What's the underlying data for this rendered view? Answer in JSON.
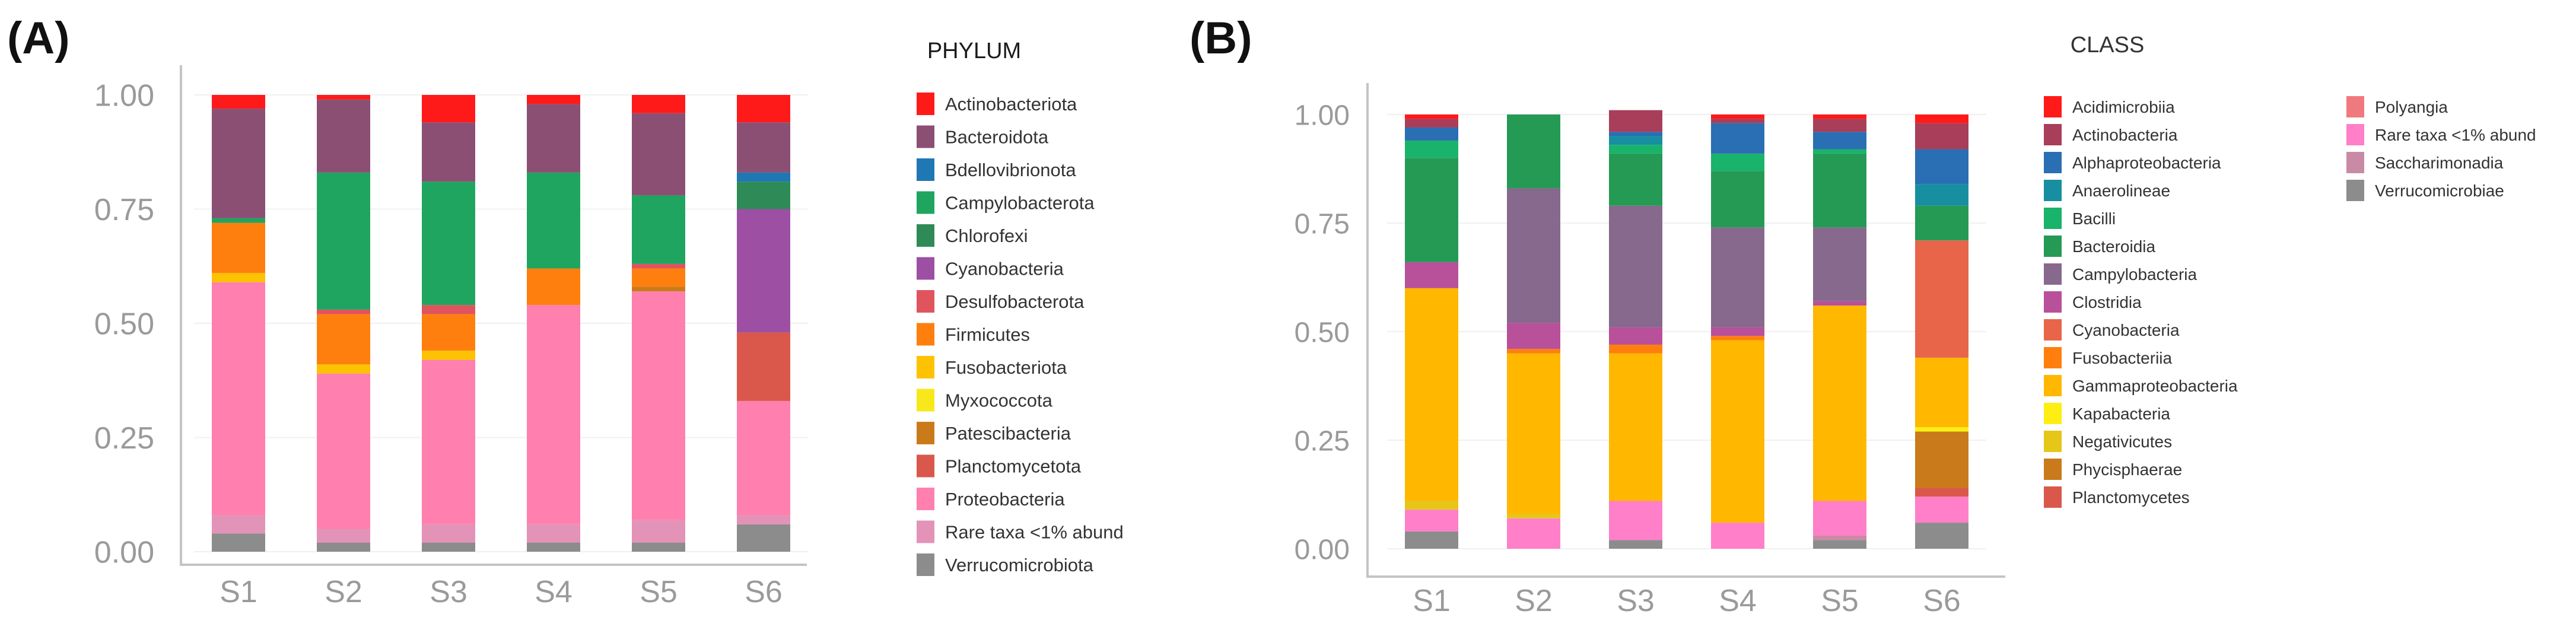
{
  "panels": [
    {
      "id": "A",
      "label": "(A)",
      "legend_title": "PHYLUM",
      "chart_data": {
        "type": "bar",
        "stacked": true,
        "categories": [
          "S1",
          "S2",
          "S3",
          "S4",
          "S5",
          "S6"
        ],
        "ylim": [
          0,
          1
        ],
        "yticks": [
          "0.00",
          "0.25",
          "0.50",
          "0.75",
          "1.00"
        ],
        "series": [
          {
            "name": "Verrucomicrobiota",
            "color": "#8c8c8c",
            "values": [
              0.04,
              0.02,
              0.02,
              0.02,
              0.02,
              0.06
            ]
          },
          {
            "name": "Rare taxa <1% abund",
            "color": "#e393b7",
            "values": [
              0.04,
              0.03,
              0.04,
              0.04,
              0.05,
              0.02
            ]
          },
          {
            "name": "Proteobacteria",
            "color": "#ff7fae",
            "values": [
              0.51,
              0.34,
              0.36,
              0.48,
              0.5,
              0.25
            ]
          },
          {
            "name": "Planctomycetota",
            "color": "#d9584b",
            "values": [
              0.0,
              0.0,
              0.0,
              0.0,
              0.0,
              0.15
            ]
          },
          {
            "name": "Patescibacteria",
            "color": "#c97b1b",
            "values": [
              0.0,
              0.0,
              0.0,
              0.0,
              0.01,
              0.0
            ]
          },
          {
            "name": "Myxococcota",
            "color": "#f7e81c",
            "values": [
              0.0,
              0.0,
              0.0,
              0.0,
              0.0,
              0.0
            ]
          },
          {
            "name": "Fusobacteriota",
            "color": "#fdc202",
            "values": [
              0.02,
              0.02,
              0.02,
              0.0,
              0.0,
              0.0
            ]
          },
          {
            "name": "Firmicutes",
            "color": "#ff7f0e",
            "values": [
              0.11,
              0.11,
              0.08,
              0.08,
              0.04,
              0.0
            ]
          },
          {
            "name": "Desulfobacterota",
            "color": "#e0545e",
            "values": [
              0.0,
              0.01,
              0.02,
              0.0,
              0.01,
              0.0
            ]
          },
          {
            "name": "Cyanobacteria",
            "color": "#9c4fa3",
            "values": [
              0.0,
              0.0,
              0.0,
              0.0,
              0.0,
              0.27
            ]
          },
          {
            "name": "Chlorofexi",
            "color": "#2e8b57",
            "values": [
              0.0,
              0.0,
              0.0,
              0.0,
              0.0,
              0.06
            ]
          },
          {
            "name": "Campylobacterota",
            "color": "#1fa55f",
            "values": [
              0.01,
              0.3,
              0.27,
              0.21,
              0.15,
              0.0
            ]
          },
          {
            "name": "Bdellovibrionota",
            "color": "#1f77b4",
            "values": [
              0.0,
              0.0,
              0.0,
              0.0,
              0.0,
              0.02
            ]
          },
          {
            "name": "Bacteroidota",
            "color": "#8b4f74",
            "values": [
              0.24,
              0.16,
              0.13,
              0.15,
              0.18,
              0.11
            ]
          },
          {
            "name": "Actinobacteriota",
            "color": "#ff1a1a",
            "values": [
              0.03,
              0.01,
              0.06,
              0.02,
              0.04,
              0.06
            ]
          }
        ],
        "legend_order": [
          "Actinobacteriota",
          "Bacteroidota",
          "Bdellovibrionota",
          "Campylobacterota",
          "Chlorofexi",
          "Cyanobacteria",
          "Desulfobacterota",
          "Firmicutes",
          "Fusobacteriota",
          "Myxococcota",
          "Patescibacteria",
          "Planctomycetota",
          "Proteobacteria",
          "Rare taxa <1% abund",
          "Verrucomicrobiota"
        ]
      }
    },
    {
      "id": "B",
      "label": "(B)",
      "legend_title": "CLASS",
      "chart_data": {
        "type": "bar",
        "stacked": true,
        "categories": [
          "S1",
          "S2",
          "S3",
          "S4",
          "S5",
          "S6"
        ],
        "ylim": [
          0,
          1
        ],
        "yticks": [
          "0.00",
          "0.25",
          "0.50",
          "0.75",
          "1.00"
        ],
        "series": [
          {
            "name": "Verrucomicrobiae",
            "color": "#8c8c8c",
            "values": [
              0.04,
              0.0,
              0.02,
              0.0,
              0.02,
              0.06
            ]
          },
          {
            "name": "Saccharimonadia",
            "color": "#c98aa6",
            "values": [
              0.0,
              0.0,
              0.0,
              0.0,
              0.01,
              0.0
            ]
          },
          {
            "name": "Rare taxa <1% abund",
            "color": "#ff7fc8",
            "values": [
              0.05,
              0.07,
              0.09,
              0.06,
              0.08,
              0.06
            ]
          },
          {
            "name": "Polyangia",
            "color": "#f0797f",
            "values": [
              0.0,
              0.0,
              0.0,
              0.0,
              0.0,
              0.0
            ]
          },
          {
            "name": "Planctomycetes",
            "color": "#d9584b",
            "values": [
              0.0,
              0.0,
              0.0,
              0.0,
              0.0,
              0.02
            ]
          },
          {
            "name": "Phycisphaerae",
            "color": "#c97b1b",
            "values": [
              0.0,
              0.0,
              0.0,
              0.0,
              0.0,
              0.13
            ]
          },
          {
            "name": "Negativicutes",
            "color": "#e6c619",
            "values": [
              0.02,
              0.01,
              0.0,
              0.0,
              0.0,
              0.0
            ]
          },
          {
            "name": "Kapabacteria",
            "color": "#ffee11",
            "values": [
              0.0,
              0.0,
              0.0,
              0.0,
              0.0,
              0.01
            ]
          },
          {
            "name": "Gammaproteobacteria",
            "color": "#ffb700",
            "values": [
              0.49,
              0.37,
              0.34,
              0.42,
              0.45,
              0.16
            ]
          },
          {
            "name": "Fusobacteriia",
            "color": "#ff7f0e",
            "values": [
              0.0,
              0.01,
              0.02,
              0.01,
              0.0,
              0.0
            ]
          },
          {
            "name": "Cyanobacteria",
            "color": "#e8654a",
            "values": [
              0.0,
              0.0,
              0.0,
              0.0,
              0.0,
              0.27
            ]
          },
          {
            "name": "Clostridia",
            "color": "#b8509a",
            "values": [
              0.06,
              0.06,
              0.04,
              0.02,
              0.01,
              0.0
            ]
          },
          {
            "name": "Campylobacteria",
            "color": "#86698c",
            "values": [
              0.0,
              0.31,
              0.28,
              0.23,
              0.17,
              0.0
            ]
          },
          {
            "name": "Bacteroidia",
            "color": "#259a55",
            "values": [
              0.24,
              0.17,
              0.12,
              0.13,
              0.17,
              0.08
            ]
          },
          {
            "name": "Bacilli",
            "color": "#19b36b",
            "values": [
              0.04,
              0.0,
              0.02,
              0.04,
              0.01,
              0.0
            ]
          },
          {
            "name": "Anaerolineae",
            "color": "#178fa0",
            "values": [
              0.0,
              0.0,
              0.02,
              0.0,
              0.0,
              0.05
            ]
          },
          {
            "name": "Alphaproteobacteria",
            "color": "#2a6eb3",
            "values": [
              0.03,
              0.0,
              0.01,
              0.07,
              0.04,
              0.08
            ]
          },
          {
            "name": "Actinobacteria",
            "color": "#a83e5a",
            "values": [
              0.02,
              0.0,
              0.05,
              0.01,
              0.03,
              0.06
            ]
          },
          {
            "name": "Acidimicrobiia",
            "color": "#ff1a1a",
            "values": [
              0.01,
              0.0,
              0.0,
              0.01,
              0.01,
              0.02
            ]
          }
        ],
        "legend_order": [
          "Acidimicrobiia",
          "Actinobacteria",
          "Alphaproteobacteria",
          "Anaerolineae",
          "Bacilli",
          "Bacteroidia",
          "Campylobacteria",
          "Clostridia",
          "Cyanobacteria",
          "Fusobacteriia",
          "Gammaproteobacteria",
          "Kapabacteria",
          "Negativicutes",
          "Phycisphaerae",
          "Planctomycetes",
          "Polyangia",
          "Rare taxa <1% abund",
          "Saccharimonadia",
          "Verrucomicrobiae"
        ]
      }
    }
  ]
}
